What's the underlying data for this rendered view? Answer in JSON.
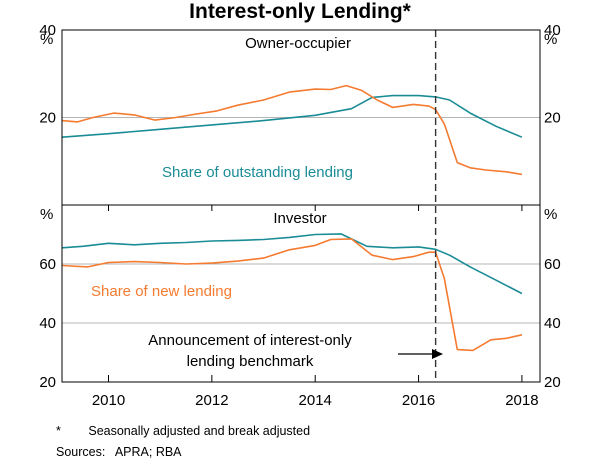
{
  "chart_data": {
    "type": "line",
    "title": "Interest-only Lending*",
    "unit": "%",
    "x_ticks": [
      "2010",
      "2012",
      "2014",
      "2016",
      "2018"
    ],
    "xlim": [
      2009.6,
      2018.85
    ],
    "vline": {
      "x": 2016.83,
      "annotation": [
        "Announcement of interest-only",
        "lending benchmark"
      ]
    },
    "panels": [
      {
        "name": "Owner-occupier",
        "ylim": [
          0,
          40
        ],
        "y_ticks": [
          "40",
          "20"
        ],
        "y_tick_values": [
          40,
          20
        ],
        "series": [
          {
            "name": "Share of outstanding lending",
            "color": "#1a8c96",
            "x": [
              2009.6,
              2010.5,
              2011.5,
              2012.5,
              2013.5,
              2014.5,
              2015.2,
              2015.6,
              2016.0,
              2016.5,
              2016.83,
              2017.1,
              2017.5,
              2018.0,
              2018.5
            ],
            "values": [
              15.5,
              16.3,
              17.3,
              18.3,
              19.3,
              20.5,
              22.0,
              24.6,
              25.0,
              25.0,
              24.7,
              24.0,
              21.0,
              18.0,
              15.5
            ]
          },
          {
            "name": "Share of new lending",
            "color": "#f47b30",
            "x": [
              2009.6,
              2009.9,
              2010.2,
              2010.6,
              2011.0,
              2011.4,
              2011.8,
              2012.2,
              2012.6,
              2013.0,
              2013.5,
              2014.0,
              2014.5,
              2014.8,
              2015.1,
              2015.4,
              2015.7,
              2016.0,
              2016.4,
              2016.7,
              2016.83,
              2017.0,
              2017.25,
              2017.5,
              2017.8,
              2018.2,
              2018.5
            ],
            "values": [
              19.3,
              19.0,
              20.0,
              21.0,
              20.6,
              19.4,
              20.0,
              20.8,
              21.5,
              22.8,
              24.0,
              25.8,
              26.5,
              26.4,
              27.3,
              26.2,
              24.0,
              22.3,
              23.0,
              22.6,
              21.8,
              18.5,
              9.7,
              8.5,
              8.0,
              7.6,
              7.0
            ]
          }
        ],
        "label_series": "Share of outstanding lending"
      },
      {
        "name": "Investor",
        "ylim": [
          20,
          80
        ],
        "y_ticks": [
          "60",
          "40",
          "20"
        ],
        "y_tick_values": [
          60,
          40,
          20
        ],
        "series": [
          {
            "name": "Share of outstanding lending",
            "color": "#1a8c96",
            "x": [
              2009.6,
              2010.0,
              2010.5,
              2011.0,
              2011.5,
              2012.0,
              2012.5,
              2013.0,
              2013.5,
              2014.0,
              2014.5,
              2015.0,
              2015.5,
              2016.0,
              2016.5,
              2016.83,
              2017.1,
              2017.5,
              2018.0,
              2018.5
            ],
            "values": [
              65.5,
              66.0,
              67.0,
              66.5,
              67.0,
              67.3,
              67.8,
              68.0,
              68.3,
              69.0,
              70.0,
              70.2,
              66.0,
              65.5,
              65.8,
              65.0,
              63.0,
              59.0,
              54.5,
              50.0
            ]
          },
          {
            "name": "Share of new lending",
            "color": "#f47b30",
            "x": [
              2009.6,
              2010.1,
              2010.5,
              2011.0,
              2011.5,
              2012.0,
              2012.5,
              2013.0,
              2013.5,
              2014.0,
              2014.5,
              2014.8,
              2015.2,
              2015.6,
              2016.0,
              2016.4,
              2016.7,
              2016.83,
              2017.0,
              2017.25,
              2017.55,
              2017.9,
              2018.2,
              2018.5
            ],
            "values": [
              59.5,
              59.0,
              60.5,
              60.8,
              60.5,
              60.0,
              60.3,
              61.0,
              62.0,
              64.8,
              66.3,
              68.3,
              68.5,
              63.0,
              61.5,
              62.5,
              64.0,
              64.0,
              55.0,
              31.0,
              30.7,
              34.3,
              34.8,
              36.0
            ]
          }
        ],
        "label_series": "Share of new lending"
      }
    ]
  },
  "footnote": {
    "marker": "*",
    "text": "Seasonally adjusted and break adjusted"
  },
  "sources": {
    "label": "Sources:",
    "text": "APRA; RBA"
  }
}
